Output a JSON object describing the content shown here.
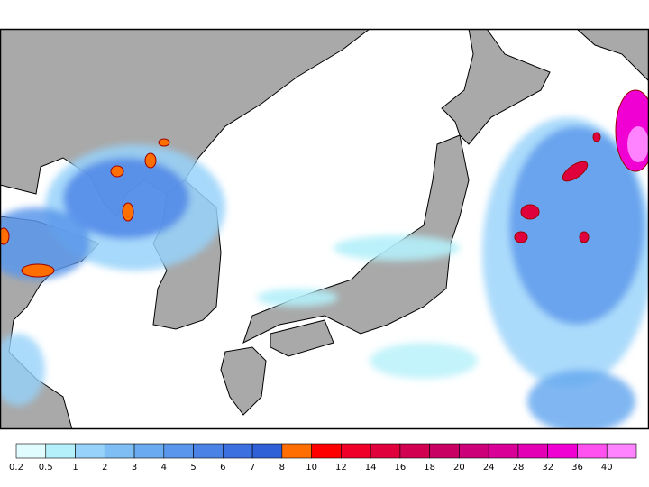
{
  "colorbar": {
    "labels": [
      0.2,
      0.5,
      1,
      2,
      3,
      4,
      5,
      6,
      7,
      8,
      10,
      12,
      14,
      16,
      18,
      20,
      24,
      28,
      32,
      36,
      40
    ],
    "colors": [
      "#e0fcff",
      "#b4f0fa",
      "#96d2fa",
      "#7ebef5",
      "#6aaaf0",
      "#5a96eb",
      "#4a82e6",
      "#3c70e0",
      "#3060d8",
      "#ff6e00",
      "#ff0000",
      "#f00028",
      "#e0003c",
      "#d20050",
      "#c80064",
      "#cc0078",
      "#d80096",
      "#e400b4",
      "#f000d2",
      "#ff50f0",
      "#ff82ff"
    ]
  }
}
